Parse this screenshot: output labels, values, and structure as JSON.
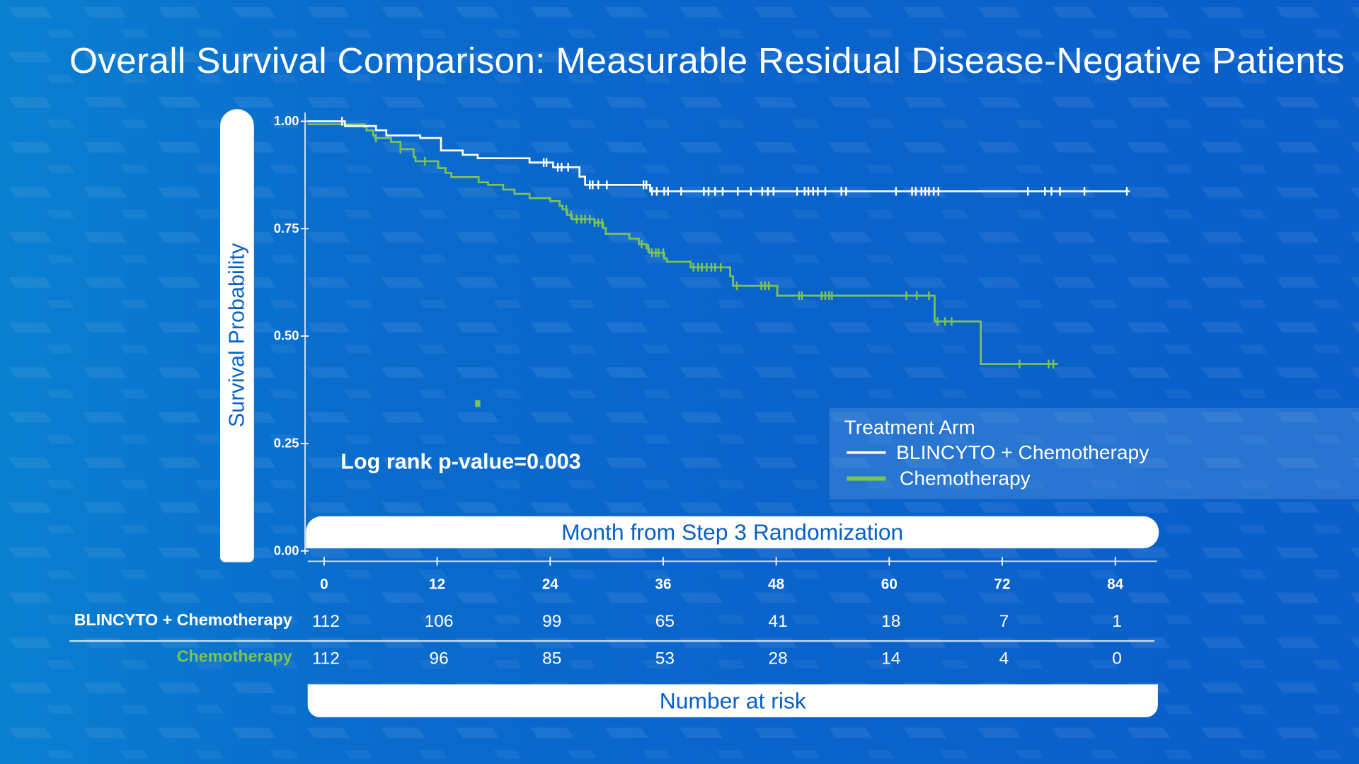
{
  "title": "Overall Survival Comparison: Measurable Residual Disease-Negative Patients",
  "chart_data": {
    "type": "line",
    "subtype": "kaplan-meier step",
    "title": "Overall Survival Comparison: Measurable Residual Disease-Negative Patients",
    "xlabel": "Month from Step 3 Randomization",
    "ylabel": "Survival Probability",
    "xlim": [
      0,
      84
    ],
    "ylim": [
      0,
      1
    ],
    "x_ticks": [
      "0",
      "12",
      "24",
      "36",
      "48",
      "60",
      "72",
      "84"
    ],
    "y_ticks": [
      "1.00",
      "0.75",
      "0.50",
      "0.25",
      "0.00"
    ],
    "grid": false,
    "annotation": "Log rank p-value=0.003",
    "legend": {
      "title": "Treatment Arm",
      "placement": "bottom-right"
    },
    "series": [
      {
        "name": "BLINCYTO + Chemotherapy",
        "color": "#ffffff",
        "steps": [
          [
            0,
            1.0
          ],
          [
            2.2,
            0.989
          ],
          [
            5.5,
            0.979
          ],
          [
            6.6,
            0.967
          ],
          [
            10.2,
            0.961
          ],
          [
            12.4,
            0.932
          ],
          [
            14.7,
            0.922
          ],
          [
            16.3,
            0.914
          ],
          [
            21.8,
            0.904
          ],
          [
            24.3,
            0.893
          ],
          [
            27.1,
            0.871
          ],
          [
            27.7,
            0.852
          ],
          [
            34.6,
            0.837
          ]
        ],
        "end": 85.5,
        "censored": [
          1.9,
          23.3,
          23.6,
          24.8,
          25.2,
          25.9,
          28.2,
          28.5,
          29.1,
          30.0,
          33.9,
          34.2,
          34.8,
          35.3,
          36.1,
          36.5,
          37.9,
          40.3,
          40.8,
          41.5,
          42.3,
          43.9,
          45.3,
          46.5,
          47.1,
          47.7,
          50.2,
          51.0,
          51.4,
          51.9,
          52.4,
          53.2,
          54.9,
          55.4,
          60.7,
          62.4,
          62.8,
          63.4,
          63.8,
          64.2,
          64.7,
          65.2,
          74.7,
          76.5,
          77.2,
          78.1,
          80.7,
          85.2
        ]
      },
      {
        "name": "Chemotherapy",
        "color": "#7dc352",
        "steps": [
          [
            0,
            0.993
          ],
          [
            4.3,
            0.987
          ],
          [
            4.5,
            0.979
          ],
          [
            5.2,
            0.967
          ],
          [
            5.4,
            0.961
          ],
          [
            7.1,
            0.952
          ],
          [
            8.1,
            0.935
          ],
          [
            9.5,
            0.917
          ],
          [
            9.7,
            0.907
          ],
          [
            12.1,
            0.891
          ],
          [
            12.9,
            0.88
          ],
          [
            13.5,
            0.87
          ],
          [
            16.4,
            0.858
          ],
          [
            17.4,
            0.852
          ],
          [
            19.0,
            0.841
          ],
          [
            20.2,
            0.831
          ],
          [
            21.8,
            0.821
          ],
          [
            24.0,
            0.814
          ],
          [
            25.0,
            0.803
          ],
          [
            25.3,
            0.795
          ],
          [
            25.8,
            0.782
          ],
          [
            26.3,
            0.772
          ],
          [
            28.7,
            0.764
          ],
          [
            29.6,
            0.751
          ],
          [
            29.9,
            0.738
          ],
          [
            32.4,
            0.727
          ],
          [
            33.4,
            0.714
          ],
          [
            34.2,
            0.704
          ],
          [
            34.5,
            0.694
          ],
          [
            36.1,
            0.68
          ],
          [
            36.4,
            0.673
          ],
          [
            38.9,
            0.66
          ],
          [
            43.1,
            0.639
          ],
          [
            43.4,
            0.617
          ],
          [
            48.1,
            0.594
          ],
          [
            64.8,
            0.534
          ],
          [
            69.7,
            0.435
          ]
        ],
        "end": 77.9,
        "censored": [
          5.5,
          8.1,
          10.7,
          25.7,
          26.2,
          26.8,
          27.3,
          27.7,
          28.2,
          28.7,
          29.1,
          29.5,
          33.7,
          34.4,
          34.8,
          35.2,
          35.5,
          36.0,
          39.2,
          39.7,
          40.1,
          40.6,
          41.1,
          41.5,
          42.1,
          43.8,
          46.4,
          46.8,
          47.2,
          50.4,
          50.7,
          52.8,
          53.2,
          53.6,
          53.9,
          61.8,
          62.9,
          64.2,
          65.1,
          65.9,
          66.6,
          73.8,
          76.9,
          77.4
        ],
        "isolated_marker": [
          16.3,
          0.343
        ]
      }
    ],
    "risk_table": {
      "title": "Number at risk",
      "months": [
        "0",
        "12",
        "24",
        "36",
        "48",
        "60",
        "72",
        "84"
      ],
      "rows": [
        {
          "label": "BLINCYTO + Chemotherapy",
          "color": "#ffffff",
          "values": [
            "112",
            "106",
            "99",
            "65",
            "41",
            "18",
            "7",
            "1"
          ]
        },
        {
          "label": "Chemotherapy",
          "color": "#7dc352",
          "values": [
            "112",
            "96",
            "85",
            "53",
            "28",
            "14",
            "4",
            "0"
          ]
        }
      ]
    }
  }
}
